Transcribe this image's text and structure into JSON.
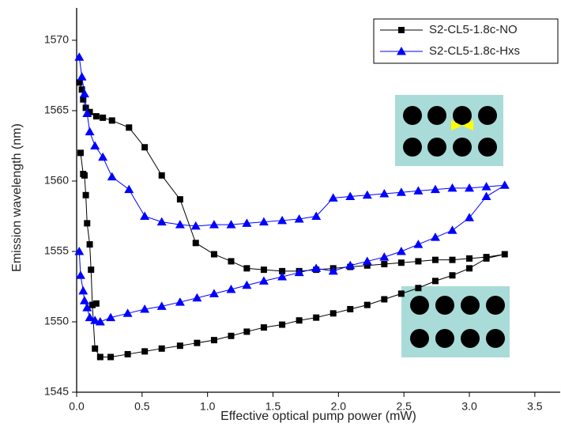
{
  "chart_data": {
    "type": "line",
    "x_label": "Effective optical pump power (mW)",
    "y_label": "Emission wavelength (nm)",
    "xlim": [
      0,
      3.7
    ],
    "ylim": [
      1545,
      1572.3
    ],
    "xticks": [
      {
        "value": 0,
        "label": "0.0"
      },
      0.5,
      {
        "value": 1,
        "label": "1.0"
      },
      1.5,
      {
        "value": 2,
        "label": "2.0"
      },
      2.5,
      {
        "value": 3,
        "label": "3.0"
      },
      3.5
    ],
    "yticks": [
      1545,
      1550,
      1555,
      1560,
      1565,
      1570
    ],
    "legend": "upper right",
    "series": [
      {
        "name": "S2-CL5-1.8c-NO",
        "color": "#000000",
        "marker": "square",
        "x": [
          0.02,
          0.04,
          0.05,
          0.07,
          0.1,
          0.15,
          0.2,
          0.27,
          0.4,
          0.52,
          0.65,
          0.79,
          0.91,
          1.05,
          1.18,
          1.3,
          1.43,
          1.57,
          1.7,
          1.83,
          1.96,
          2.09,
          2.22,
          2.35,
          2.48,
          2.61,
          2.74,
          2.87,
          3.0,
          3.13,
          3.27,
          3.13,
          3.0,
          2.87,
          2.74,
          2.61,
          2.48,
          2.35,
          2.22,
          2.09,
          1.96,
          1.83,
          1.7,
          1.57,
          1.43,
          1.3,
          1.18,
          1.05,
          0.92,
          0.79,
          0.65,
          0.52,
          0.39,
          0.26,
          0.18,
          0.14,
          0.12,
          0.15,
          0.12,
          0.11,
          0.1,
          0.08,
          0.07,
          0.06,
          0.05,
          0.03
        ],
        "values": [
          1567,
          1566.5,
          1565.8,
          1565.2,
          1564.9,
          1564.6,
          1564.5,
          1564.3,
          1563.8,
          1562.4,
          1560.4,
          1558.7,
          1555.6,
          1554.8,
          1554.3,
          1553.8,
          1553.7,
          1553.6,
          1553.6,
          1553.7,
          1553.8,
          1553.9,
          1554.0,
          1554.1,
          1554.2,
          1554.3,
          1554.4,
          1554.4,
          1554.5,
          1554.6,
          1554.8,
          1554.5,
          1553.8,
          1553.3,
          1552.9,
          1552.4,
          1552.0,
          1551.6,
          1551.2,
          1550.9,
          1550.6,
          1550.3,
          1550.1,
          1549.8,
          1549.6,
          1549.3,
          1549.0,
          1548.7,
          1548.5,
          1548.3,
          1548.1,
          1547.9,
          1547.7,
          1547.5,
          1547.5,
          1548.1,
          1551.2,
          1551.3,
          1551.2,
          1553.7,
          1555.5,
          1557,
          1559,
          1560.4,
          1560.5,
          1562
        ]
      },
      {
        "name": "S2-CL5-1.8c-Hxs",
        "color": "#0000ff",
        "marker": "triangle",
        "x": [
          0.02,
          0.04,
          0.06,
          0.08,
          0.1,
          0.14,
          0.2,
          0.27,
          0.4,
          0.52,
          0.65,
          0.79,
          0.91,
          1.05,
          1.18,
          1.3,
          1.43,
          1.57,
          1.7,
          1.83,
          1.96,
          2.09,
          2.22,
          2.35,
          2.48,
          2.61,
          2.74,
          2.87,
          3.0,
          3.13,
          3.27,
          3.13,
          3.0,
          2.87,
          2.74,
          2.61,
          2.48,
          2.35,
          2.22,
          2.09,
          1.96,
          1.83,
          1.7,
          1.57,
          1.43,
          1.3,
          1.18,
          1.05,
          0.92,
          0.79,
          0.65,
          0.52,
          0.39,
          0.26,
          0.18,
          0.14,
          0.1,
          0.08,
          0.06,
          0.05,
          0.03,
          0.02
        ],
        "values": [
          1568.8,
          1567.4,
          1566.2,
          1564.8,
          1563.5,
          1562.5,
          1561.7,
          1560.3,
          1559.4,
          1557.5,
          1557.1,
          1556.9,
          1556.8,
          1556.9,
          1556.9,
          1557.0,
          1557.1,
          1557.2,
          1557.3,
          1557.5,
          1558.8,
          1558.9,
          1559.0,
          1559.1,
          1559.2,
          1559.3,
          1559.4,
          1559.5,
          1559.5,
          1559.6,
          1559.7,
          1558.9,
          1557.4,
          1556.5,
          1556.0,
          1555.5,
          1555.0,
          1554.6,
          1554.3,
          1554.0,
          1553.6,
          1553.8,
          1553.5,
          1553.2,
          1552.9,
          1552.6,
          1552.3,
          1552.0,
          1551.7,
          1551.4,
          1551.1,
          1550.9,
          1550.6,
          1550.3,
          1550.0,
          1550.1,
          1550.3,
          1551.0,
          1551.5,
          1552.2,
          1553.3,
          1555.0
        ]
      }
    ]
  }
}
